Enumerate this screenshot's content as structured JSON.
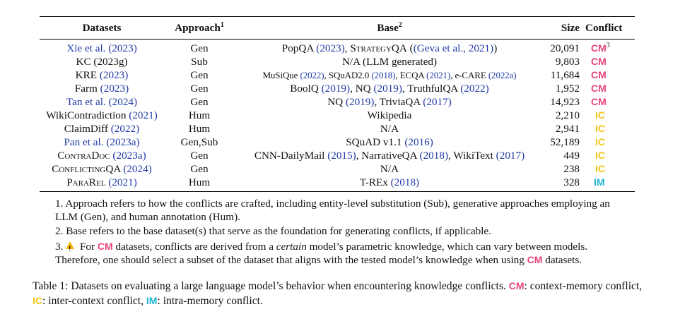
{
  "table": {
    "headers": {
      "datasets": "Datasets",
      "approach": "Approach",
      "approach_sup": "1",
      "base": "Base",
      "base_sup": "2",
      "size": "Size",
      "conflict": "Conflict"
    },
    "rows": [
      {
        "dataset": "Xie et al. (2023)",
        "approach": "Gen",
        "size": "20,091",
        "conflict": "CM",
        "conflict_sup": "3"
      },
      {
        "dataset": "KC (2023g)",
        "approach": "Sub",
        "size": "9,803",
        "conflict": "CM"
      },
      {
        "dataset_pre": "KRE ",
        "dataset_cite": "(2023)",
        "approach": "Gen",
        "size": "11,684",
        "conflict": "CM"
      },
      {
        "dataset_pre": "Farm ",
        "dataset_cite": "(2023)",
        "approach": "Gen",
        "size": "1,952",
        "conflict": "CM"
      },
      {
        "dataset": "Tan et al. (2024)",
        "approach": "Gen",
        "size": "14,923",
        "conflict": "CM"
      },
      {
        "dataset_pre": "WikiContradiction ",
        "dataset_cite": "(2021)",
        "approach": "Hum",
        "size": "2,210",
        "conflict": "IC"
      },
      {
        "dataset_pre": "ClaimDiff ",
        "dataset_cite": "(2022)",
        "approach": "Hum",
        "size": "2,941",
        "conflict": "IC"
      },
      {
        "dataset": "Pan et al. (2023a)",
        "approach": "Gen,Sub",
        "size": "52,189",
        "conflict": "IC"
      },
      {
        "dataset_pre": "ContraDoc ",
        "dataset_cite": "(2023a)",
        "approach": "Gen",
        "size": "449",
        "conflict": "IC"
      },
      {
        "dataset_pre": "ConflictingQA ",
        "dataset_cite": "(2024)",
        "approach": "Gen",
        "size": "238",
        "conflict": "IC"
      },
      {
        "dataset_pre": "ParaRel ",
        "dataset_cite": "(2021)",
        "approach": "Hum",
        "size": "328",
        "conflict": "IM"
      }
    ],
    "base": {
      "r0": {
        "a": "PopQA ",
        "a_cite": "(2023)",
        "b": ", ",
        "c_sc": "StrategyQA",
        "d": " (",
        "e_cite": "(Geva et al., 2021)",
        "f": ")"
      },
      "r1": "N/A (LLM generated)",
      "r2": {
        "a": "MuSiQue ",
        "a_cite": "(2022)",
        "b": ", SQuAD2.0 ",
        "b_cite": "(2018)",
        "c": ", ECQA ",
        "c_cite": "(2021)",
        "d": ", e-CARE ",
        "d_cite": "(2022a)"
      },
      "r3": {
        "a": "BoolQ ",
        "a_cite": "(2019)",
        "b": ", NQ ",
        "b_cite": "(2019)",
        "c": ", TruthfulQA ",
        "c_cite": "(2022)"
      },
      "r4": {
        "a": "NQ ",
        "a_cite": "(2019)",
        "b": ", TriviaQA ",
        "b_cite": "(2017)"
      },
      "r5": "Wikipedia",
      "r6": "N/A",
      "r7": {
        "a": "SQuAD v1.1 ",
        "a_cite": "(2016)"
      },
      "r8": {
        "a": "CNN-DailyMail ",
        "a_cite": "(2015)",
        "b": ", NarrativeQA ",
        "b_cite": "(2018)",
        "c": ", WikiText ",
        "c_cite": "(2017)"
      },
      "r9": "N/A",
      "r10": {
        "a": "T-REx ",
        "a_cite": "(2018)"
      }
    }
  },
  "notes": {
    "n1": "1. Approach refers to how the conflicts are crafted, including entity-level substitution (Sub), generative approaches employing an LLM (Gen), and human annotation (Hum).",
    "n2": "2. Base refers to the base dataset(s) that serve as the foundation for generating conflicts, if applicable.",
    "n3_a": "3. ",
    "n3_b": " For ",
    "n3_tag": "CM",
    "n3_c": " datasets, conflicts are derived from a ",
    "n3_em": "certain",
    "n3_d": " model’s parametric knowledge, which can vary between models. Therefore, one should select a subset of the dataset that aligns with the tested model’s knowledge when using ",
    "n3_tag2": "CM",
    "n3_e": " datasets."
  },
  "caption": {
    "a": "Table 1: Datasets on evaluating a large language model’s behavior when encountering knowledge conflicts. ",
    "cm": "CM",
    "b": ": context-memory conflict, ",
    "ic": "IC",
    "c": ": inter-context conflict, ",
    "im": "IM",
    "d": ": intra-memory conflict."
  },
  "colors": {
    "cm": "#e8457a",
    "ic": "#f5c518",
    "im": "#1fb5d6",
    "cite": "#1f3aa8"
  }
}
